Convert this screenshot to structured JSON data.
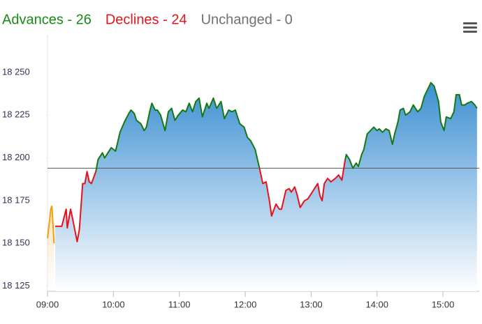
{
  "chart_data": {
    "type": "line",
    "header": [
      {
        "text": "Advances - 26",
        "color": "#178a17"
      },
      {
        "text": "Declines - 24",
        "color": "#e0151b"
      },
      {
        "text": "Unchanged - 0",
        "color": "#707070"
      }
    ],
    "reference_value": 18194,
    "above_color": "#137a13",
    "below_color": "#e8101a",
    "area_color": "#3c8fd2",
    "xlim": [
      "09:00",
      "15:33"
    ],
    "xticks": [
      "09:00",
      "10:00",
      "11:00",
      "12:00",
      "13:00",
      "14:00",
      "15:00"
    ],
    "ylim": [
      18122,
      18272
    ],
    "yticks": [
      {
        "value": 18125,
        "label": "18 125"
      },
      {
        "value": 18150,
        "label": "18 150"
      },
      {
        "value": 18175,
        "label": "18 175"
      },
      {
        "value": 18200,
        "label": "18 200"
      },
      {
        "value": 18225,
        "label": "18 225"
      },
      {
        "value": 18250,
        "label": "18 250"
      }
    ],
    "preopen": {
      "color": "#f0a010",
      "x": [
        "09:00",
        "09:03",
        "09:04",
        "09:06"
      ],
      "values": [
        18153,
        18170,
        18172,
        18150
      ]
    },
    "x": [
      "09:07",
      "09:13",
      "09:17",
      "09:18",
      "09:21",
      "09:23",
      "09:27",
      "09:29",
      "09:32",
      "09:34",
      "09:36",
      "09:38",
      "09:40",
      "09:44",
      "09:46",
      "09:50",
      "09:52",
      "09:55",
      "09:58",
      "10:00",
      "10:02",
      "10:06",
      "10:10",
      "10:14",
      "10:16",
      "10:19",
      "10:21",
      "10:25",
      "10:28",
      "10:30",
      "10:33",
      "10:35",
      "10:38",
      "10:40",
      "10:43",
      "10:47",
      "10:50",
      "10:53",
      "10:56",
      "10:59",
      "11:03",
      "11:06",
      "11:09",
      "11:12",
      "11:15",
      "11:18",
      "11:21",
      "11:25",
      "11:27",
      "11:31",
      "11:34",
      "11:38",
      "11:41",
      "11:45",
      "11:48",
      "11:51",
      "11:55",
      "11:59",
      "12:02",
      "12:05",
      "12:09",
      "12:13",
      "12:16",
      "12:19",
      "12:22",
      "12:24",
      "12:28",
      "12:31",
      "12:33",
      "12:37",
      "12:40",
      "12:42",
      "12:45",
      "12:47",
      "12:50",
      "12:54",
      "12:57",
      "13:00",
      "13:04",
      "13:06",
      "13:08",
      "13:10",
      "13:12",
      "13:15",
      "13:18",
      "13:22",
      "13:25",
      "13:28",
      "13:31",
      "13:32",
      "13:35",
      "13:38",
      "13:41",
      "13:43",
      "13:46",
      "13:48",
      "13:51",
      "13:54",
      "13:57",
      "14:00",
      "14:02",
      "14:05",
      "14:08",
      "14:11",
      "14:14",
      "14:16",
      "14:19",
      "14:21",
      "14:24",
      "14:26",
      "14:30",
      "14:33",
      "14:37",
      "14:40",
      "14:43",
      "14:46",
      "14:49",
      "14:52",
      "14:56",
      "14:58",
      "15:01",
      "15:03",
      "15:07",
      "15:10",
      "15:12",
      "15:15",
      "15:17",
      "15:20",
      "15:22",
      "15:26",
      "15:29",
      "15:31"
    ],
    "values": [
      18160,
      18160,
      18170,
      18159,
      18170,
      18164,
      18151,
      18158,
      18185,
      18185,
      18192,
      18186,
      18185,
      18192,
      18199,
      18203,
      18200,
      18203,
      18206,
      18205,
      18204,
      18215,
      18221,
      18226,
      18228,
      18226,
      18222,
      18220,
      18216,
      18218,
      18227,
      18232,
      18228,
      18228,
      18225,
      18216,
      18227,
      18229,
      18222,
      18225,
      18228,
      18227,
      18232,
      18227,
      18233,
      18235,
      18224,
      18232,
      18229,
      18235,
      18229,
      18233,
      18223,
      18228,
      18227,
      18228,
      18220,
      18218,
      18212,
      18210,
      18205,
      18194,
      18185,
      18186,
      18175,
      18166,
      18173,
      18170,
      18170,
      18181,
      18182,
      18180,
      18183,
      18179,
      18171,
      18175,
      18176,
      18179,
      18183,
      18185,
      18178,
      18175,
      18185,
      18188,
      18186,
      18188,
      18190,
      18187,
      18199,
      18202,
      18199,
      18194,
      18197,
      18195,
      18202,
      18205,
      18214,
      18216,
      18218,
      18216,
      18217,
      18215,
      18217,
      18216,
      18208,
      18214,
      18221,
      18228,
      18229,
      18225,
      18227,
      18231,
      18227,
      18229,
      18236,
      18240,
      18244,
      18242,
      18233,
      18221,
      18216,
      18224,
      18223,
      18227,
      18237,
      18237,
      18231,
      18231,
      18232,
      18233,
      18231,
      18229
    ]
  }
}
